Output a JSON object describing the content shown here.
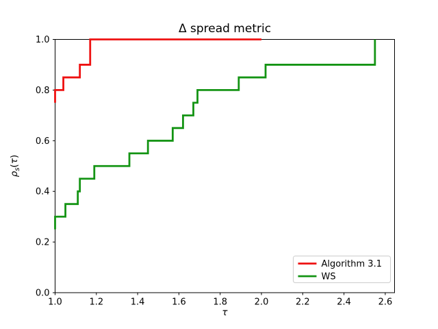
{
  "figure": {
    "background": "#ffffff",
    "spine_color": "#000000"
  },
  "chart_data": {
    "type": "line",
    "subtype": "step-post-ecdf",
    "title": "Δ spread metric",
    "xlabel": "τ",
    "ylabel": "ρs(τ)",
    "ylabel_parts": {
      "rho": "ρ",
      "sub": "s",
      "open": "(",
      "tau": "τ",
      "close": ")"
    },
    "xlim": [
      1.0,
      2.645
    ],
    "ylim": [
      0.0,
      1.0
    ],
    "xticks": [
      "1.0",
      "1.2",
      "1.4",
      "1.6",
      "1.8",
      "2.0",
      "2.2",
      "2.4",
      "2.6"
    ],
    "yticks": [
      "0.0",
      "0.2",
      "0.4",
      "0.6",
      "0.8",
      "1.0"
    ],
    "grid": false,
    "legend_position": "lower right",
    "series": [
      {
        "name": "Algorithm 3.1",
        "color": "#ee1111",
        "linewidth": 2.8,
        "start": [
          1.0,
          0.75
        ],
        "jumps": [
          [
            1.0,
            0.8
          ],
          [
            1.04,
            0.85
          ],
          [
            1.12,
            0.9
          ],
          [
            1.17,
            1.0
          ]
        ],
        "end_x": 2.0
      },
      {
        "name": "WS",
        "color": "#149414",
        "linewidth": 2.8,
        "start": [
          1.0,
          0.25
        ],
        "jumps": [
          [
            1.0,
            0.3
          ],
          [
            1.05,
            0.35
          ],
          [
            1.11,
            0.4
          ],
          [
            1.12,
            0.45
          ],
          [
            1.19,
            0.5
          ],
          [
            1.36,
            0.55
          ],
          [
            1.45,
            0.6
          ],
          [
            1.57,
            0.65
          ],
          [
            1.62,
            0.7
          ],
          [
            1.67,
            0.75
          ],
          [
            1.69,
            0.8
          ],
          [
            1.89,
            0.85
          ],
          [
            2.02,
            0.9
          ],
          [
            2.55,
            1.0
          ]
        ],
        "end_x": 2.55
      }
    ],
    "legend": {
      "entries": [
        {
          "label": "Algorithm 3.1",
          "color": "#ee1111"
        },
        {
          "label": "WS",
          "color": "#149414"
        }
      ]
    }
  }
}
